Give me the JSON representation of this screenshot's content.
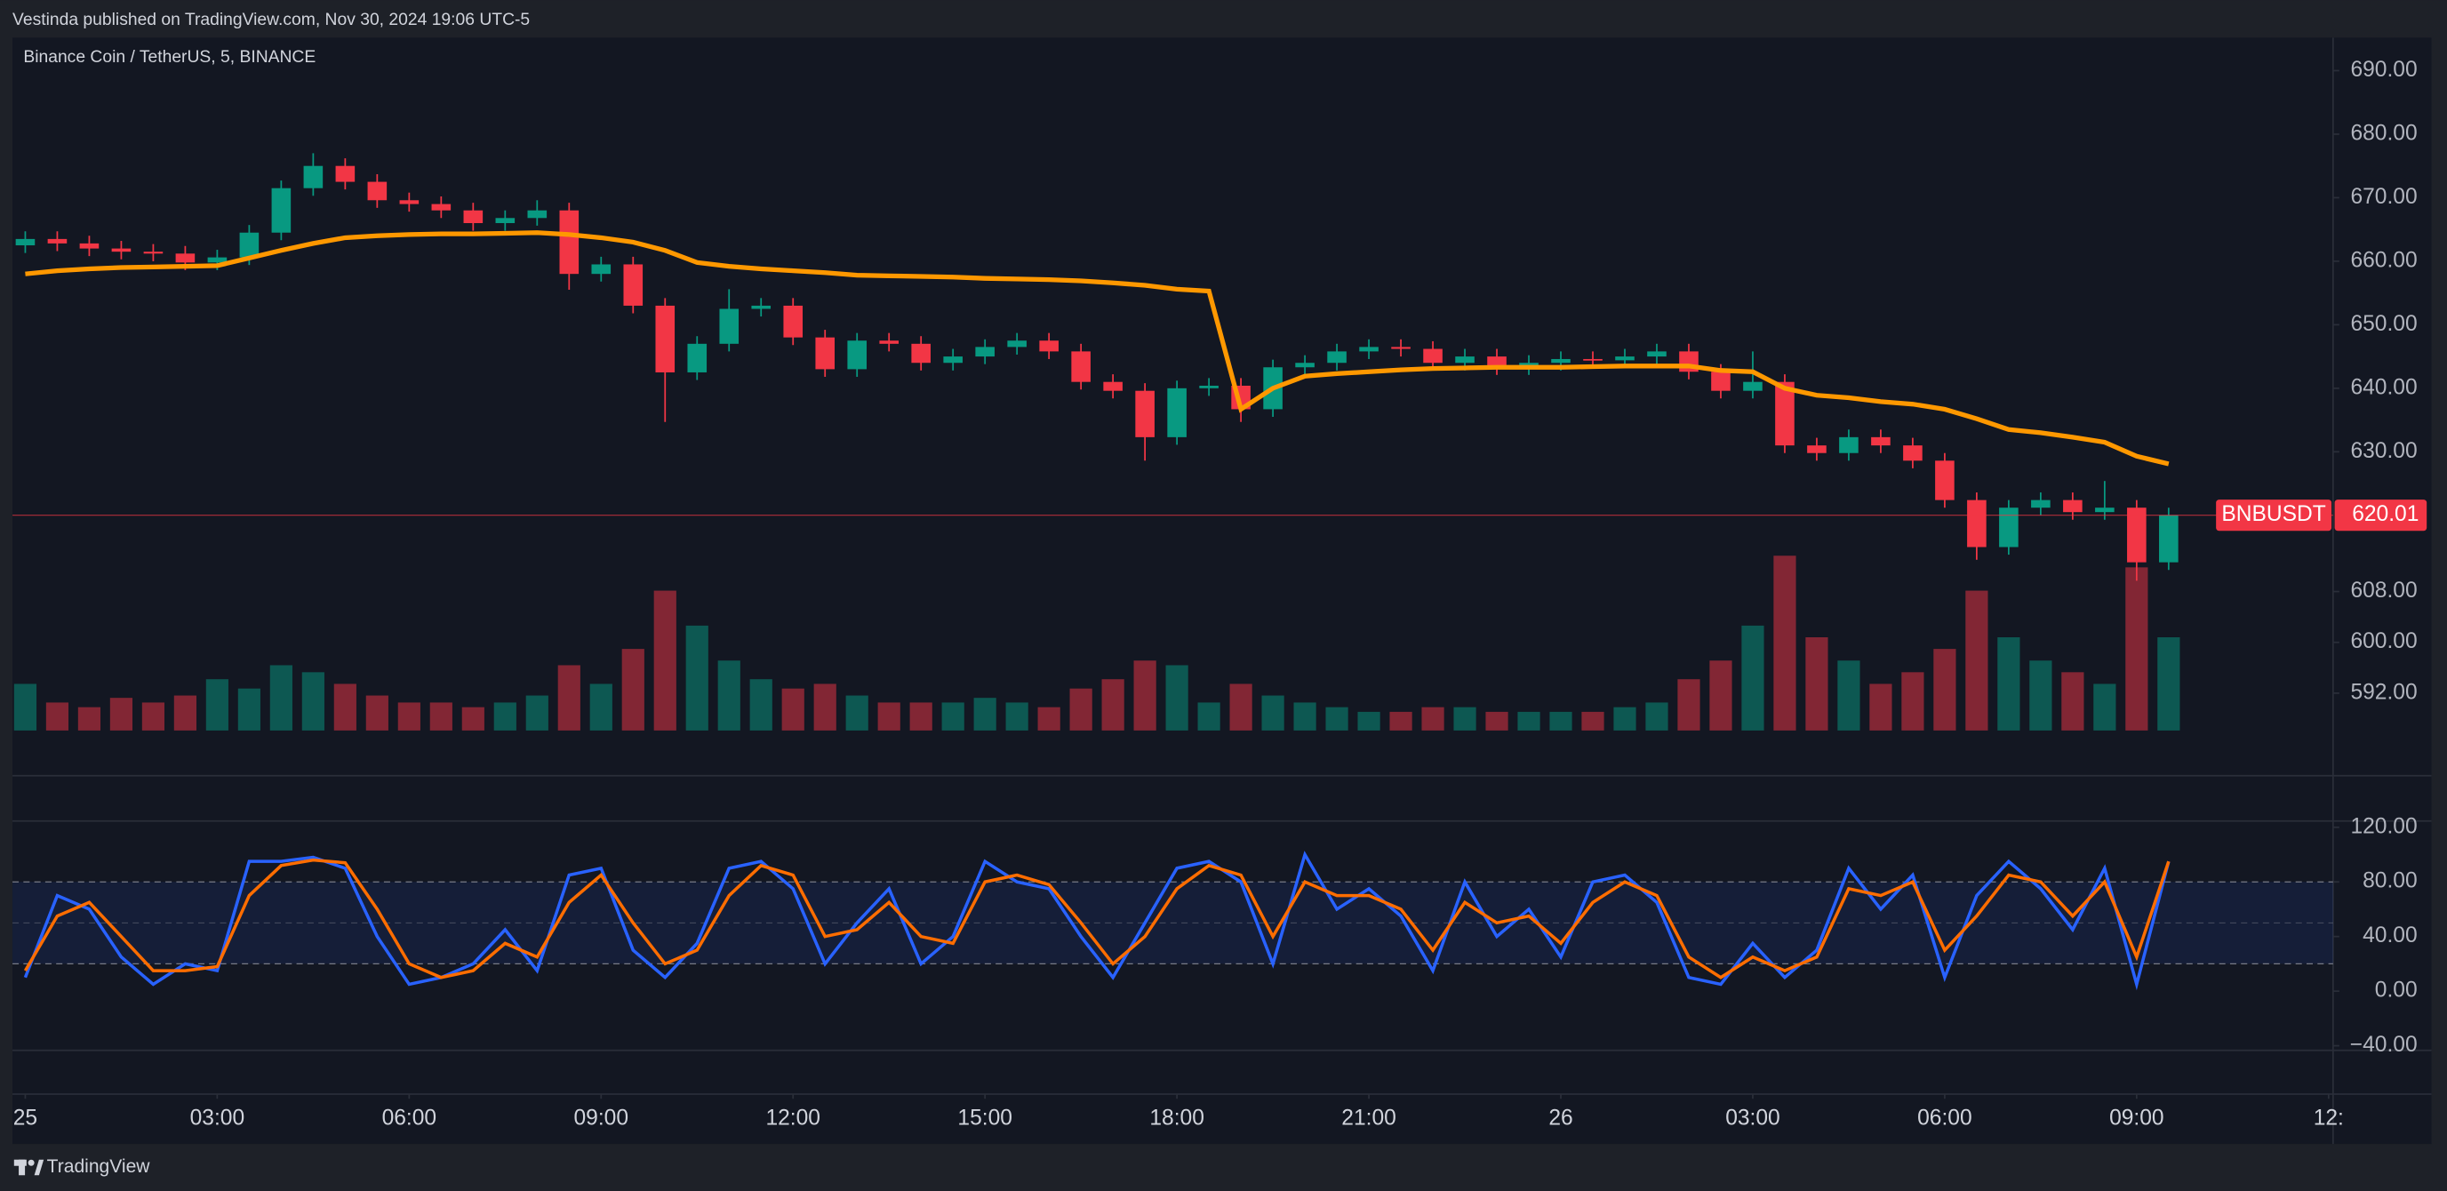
{
  "header": {
    "text": "Vestinda published on TradingView.com, Nov 30, 2024 19:06 UTC-5"
  },
  "footer": {
    "brand": "TradingView"
  },
  "chart_data": [
    {
      "type": "candlestick",
      "title": "Binance Coin / TetherUS, 5, BINANCE",
      "x": [
        0,
        0.5,
        1,
        1.5,
        2,
        2.5,
        3,
        3.5,
        4,
        4.5,
        5,
        5.5,
        6,
        6.5,
        7,
        7.5,
        8,
        8.5,
        9,
        9.5,
        10,
        10.5,
        11,
        11.5,
        12,
        12.5,
        13,
        13.5,
        14,
        14.5,
        15,
        15.5,
        16,
        16.5,
        17,
        17.5,
        18,
        18.5,
        19,
        19.5,
        20,
        20.5,
        21,
        21.5,
        22,
        22.5,
        23,
        23.5,
        24,
        24.5,
        25,
        25.5,
        26,
        26.5,
        27,
        27.5,
        28,
        28.5,
        29,
        29.5,
        30,
        30.5,
        31,
        31.5,
        32,
        32.5,
        33,
        33.5
      ],
      "xlim": [
        -0.2,
        36.07
      ],
      "xticks": [
        {
          "value": 0,
          "label": "25"
        },
        {
          "value": 3,
          "label": "03:00"
        },
        {
          "value": 6,
          "label": "06:00"
        },
        {
          "value": 9,
          "label": "09:00"
        },
        {
          "value": 12,
          "label": "12:00"
        },
        {
          "value": 15,
          "label": "15:00"
        },
        {
          "value": 18,
          "label": "18:00"
        },
        {
          "value": 21,
          "label": "21:00"
        },
        {
          "value": 24,
          "label": "26"
        },
        {
          "value": 27,
          "label": "03:00"
        },
        {
          "value": 30,
          "label": "06:00"
        },
        {
          "value": 33,
          "label": "09:00"
        },
        {
          "value": 36,
          "label": "12:"
        }
      ],
      "ylim": [
        579,
        695.2
      ],
      "yticks": [
        {
          "value": 690,
          "label": "690.00"
        },
        {
          "value": 680,
          "label": "680.00"
        },
        {
          "value": 670,
          "label": "670.00"
        },
        {
          "value": 660,
          "label": "660.00"
        },
        {
          "value": 650,
          "label": "650.00"
        },
        {
          "value": 640,
          "label": "640.00"
        },
        {
          "value": 630,
          "label": "630.00"
        },
        {
          "value": 608,
          "label": "608.00"
        },
        {
          "value": 600,
          "label": "600.00"
        },
        {
          "value": 592,
          "label": "592.00"
        }
      ],
      "open": [
        662.5,
        663.5,
        662.8,
        662,
        661.5,
        661.2,
        659.8,
        660.6,
        664.5,
        671.5,
        675,
        672.5,
        669.6,
        669,
        668,
        666,
        666.8,
        668,
        658,
        659.5,
        653,
        642.5,
        647,
        652.5,
        653,
        648,
        643,
        647.5,
        647,
        644,
        645,
        646.5,
        647.5,
        645.8,
        641,
        639.6,
        632.3,
        640,
        640.4,
        636.7,
        643.3,
        644,
        645.8,
        646.5,
        646.2,
        644,
        645,
        643.3,
        644,
        644.6,
        644.4,
        645,
        645.8,
        642.6,
        639.6,
        641,
        631,
        629.8,
        632.3,
        631,
        628.6,
        622.4,
        615,
        621.2,
        622.4,
        620.5,
        621.2,
        612.6
      ],
      "high": [
        664.7,
        664.7,
        664,
        663.2,
        662.7,
        662.4,
        661.8,
        665.7,
        672.7,
        677,
        676.2,
        673.7,
        670.8,
        670.2,
        669.2,
        668,
        669.6,
        669.2,
        660.7,
        660.7,
        654.2,
        648.2,
        655.6,
        654.2,
        654.2,
        649.2,
        648.7,
        648.7,
        648.2,
        646.2,
        647.7,
        648.7,
        648.7,
        647,
        642.2,
        640.8,
        641.2,
        641.6,
        641.6,
        644.5,
        645.2,
        647,
        647.7,
        647.7,
        647.4,
        646.2,
        646.2,
        645.2,
        645.8,
        645.8,
        646.2,
        647,
        647,
        643.8,
        645.8,
        642.2,
        632.2,
        633.5,
        633.5,
        632.2,
        629.8,
        623.6,
        622.4,
        623.6,
        623.6,
        625.4,
        622.4,
        621.2
      ],
      "low": [
        661.3,
        661.6,
        660.8,
        660.3,
        660,
        658.6,
        658.6,
        659.4,
        663.3,
        670.3,
        671.3,
        668.4,
        667.8,
        666.8,
        664.8,
        664.8,
        665.6,
        655.5,
        656.8,
        651.8,
        634.7,
        641.3,
        645.8,
        651.3,
        646.8,
        641.8,
        641.8,
        645.8,
        642.8,
        642.8,
        643.8,
        645.3,
        644.6,
        639.8,
        638.4,
        628.6,
        631.1,
        638.8,
        634.7,
        635.5,
        642.1,
        642.8,
        644.6,
        645,
        642.8,
        642.8,
        642.1,
        642.1,
        642.8,
        643.2,
        643.2,
        643.8,
        641.4,
        638.4,
        638.4,
        629.8,
        628.6,
        628.6,
        629.8,
        627.4,
        621.2,
        613,
        613.8,
        620,
        619.3,
        619.3,
        609.7,
        611.4
      ],
      "close": [
        663.5,
        662.8,
        662,
        661.5,
        661.2,
        659.8,
        660.6,
        664.5,
        671.5,
        675,
        672.5,
        669.6,
        669,
        668,
        666,
        666.8,
        668,
        658,
        659.5,
        653,
        642.5,
        647,
        652.5,
        653,
        648,
        643,
        647.5,
        647,
        644,
        645,
        646.5,
        647.5,
        645.8,
        641,
        639.6,
        632.3,
        640,
        640.4,
        636.7,
        643.3,
        644,
        645.8,
        646.5,
        646.2,
        644,
        645,
        643.3,
        644,
        644.6,
        644.4,
        645,
        645.8,
        642.6,
        639.6,
        641,
        631,
        629.8,
        632.3,
        631,
        628.6,
        622.4,
        615,
        621.2,
        622.4,
        620.5,
        621.2,
        612.6,
        620.01
      ],
      "volume": [
        20,
        12,
        10,
        14,
        12,
        15,
        22,
        18,
        28,
        25,
        20,
        15,
        12,
        12,
        10,
        12,
        15,
        28,
        20,
        35,
        60,
        45,
        30,
        22,
        18,
        20,
        15,
        12,
        12,
        12,
        14,
        12,
        10,
        18,
        22,
        30,
        28,
        12,
        20,
        15,
        12,
        10,
        8,
        8,
        10,
        10,
        8,
        8,
        8,
        8,
        10,
        12,
        22,
        30,
        45,
        75,
        40,
        30,
        20,
        25,
        35,
        60,
        40,
        30,
        25,
        20,
        70,
        40
      ],
      "up_color": "#089981",
      "down_color": "#f23645",
      "series": [
        {
          "color": "#ff9800",
          "values": [
            658,
            658.5,
            658.8,
            659,
            659.1,
            659.2,
            659.3,
            660.5,
            661.7,
            662.8,
            663.7,
            664,
            664.2,
            664.3,
            664.3,
            664.4,
            664.5,
            664.2,
            663.7,
            663,
            661.7,
            659.8,
            659.2,
            658.8,
            658.5,
            658.2,
            657.8,
            657.7,
            657.6,
            657.5,
            657.3,
            657.2,
            657.1,
            656.9,
            656.6,
            656.2,
            655.6,
            655.3,
            636.7,
            640,
            641.9,
            642.3,
            642.6,
            642.9,
            643.1,
            643.2,
            643.3,
            643.3,
            643.3,
            643.4,
            643.5,
            643.5,
            643.5,
            642.8,
            642.6,
            640,
            638.9,
            638.5,
            637.9,
            637.5,
            636.7,
            635.2,
            633.5,
            633,
            632.3,
            631.5,
            629.3,
            628.1
          ]
        }
      ],
      "last_price": {
        "symbol": "BNBUSDT",
        "value": 620.01,
        "color": "#f23645"
      }
    },
    {
      "type": "line",
      "ylim": [
        -43.4,
        124.6
      ],
      "yticks": [
        {
          "value": 120,
          "label": "120.00"
        },
        {
          "value": 80,
          "label": "80.00"
        },
        {
          "value": 40,
          "label": "40.00"
        },
        {
          "value": 0,
          "label": "0.00"
        },
        {
          "value": -40,
          "label": "−40.00"
        }
      ],
      "band": [
        20,
        80
      ],
      "midline": 50,
      "band_color": "#2962ff",
      "series": [
        {
          "color": "#2962ff",
          "values": [
            10,
            70,
            60,
            25,
            5,
            20,
            15,
            95,
            95,
            98,
            90,
            40,
            5,
            10,
            20,
            45,
            15,
            85,
            90,
            30,
            10,
            35,
            90,
            95,
            75,
            20,
            50,
            75,
            20,
            40,
            95,
            80,
            75,
            40,
            10,
            50,
            90,
            95,
            80,
            20,
            100,
            60,
            75,
            55,
            15,
            80,
            40,
            60,
            25,
            80,
            85,
            65,
            10,
            5,
            35,
            10,
            30,
            90,
            60,
            85,
            10,
            70,
            95,
            75,
            45,
            90,
            5,
            95
          ]
        },
        {
          "color": "#ff6d00",
          "values": [
            15,
            55,
            65,
            40,
            15,
            15,
            18,
            70,
            92,
            96,
            94,
            60,
            20,
            10,
            15,
            35,
            25,
            65,
            85,
            50,
            20,
            30,
            70,
            92,
            85,
            40,
            45,
            65,
            40,
            35,
            80,
            85,
            78,
            50,
            20,
            40,
            75,
            92,
            85,
            40,
            80,
            70,
            70,
            60,
            30,
            65,
            50,
            55,
            35,
            65,
            80,
            70,
            25,
            10,
            25,
            15,
            25,
            75,
            70,
            80,
            30,
            55,
            85,
            80,
            55,
            80,
            25,
            95
          ]
        }
      ]
    }
  ]
}
